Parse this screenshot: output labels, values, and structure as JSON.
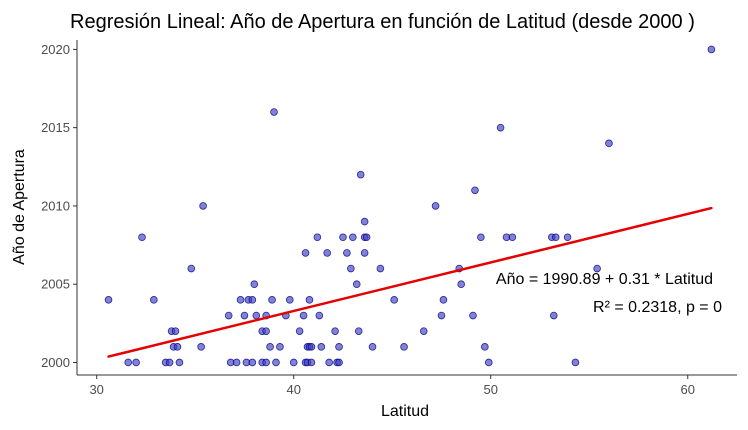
{
  "chart_data": {
    "type": "scatter",
    "title": "Regresión Lineal: Año de Apertura en función de Latitud (desde 2000 )",
    "xlabel": "Latitud",
    "ylabel": "Año de Apertura",
    "xlim": [
      29.0,
      62.5
    ],
    "ylim": [
      1999.2,
      2020.6
    ],
    "xticks": [
      30,
      40,
      50,
      60
    ],
    "yticks": [
      2000,
      2005,
      2010,
      2015,
      2020
    ],
    "grid": false,
    "colors": {
      "points": "#3f3fbf",
      "point_stroke": "#00008b",
      "fit_line": "#e60000"
    },
    "fit_line": {
      "intercept": 1990.89,
      "slope": 0.31,
      "x_range": [
        30.6,
        61.2
      ]
    },
    "annotations": [
      "Año = 1990.89 + 0.31 * Latitud",
      "R² = 0.2318, p = 0"
    ],
    "points": [
      [
        30.6,
        2004
      ],
      [
        31.6,
        2000
      ],
      [
        32.0,
        2000
      ],
      [
        32.3,
        2008
      ],
      [
        32.9,
        2004
      ],
      [
        33.5,
        2000
      ],
      [
        33.7,
        2000
      ],
      [
        33.8,
        2002
      ],
      [
        34.0,
        2002
      ],
      [
        33.9,
        2001
      ],
      [
        34.1,
        2001
      ],
      [
        34.2,
        2000
      ],
      [
        34.8,
        2006
      ],
      [
        35.3,
        2001
      ],
      [
        35.4,
        2010
      ],
      [
        36.7,
        2003
      ],
      [
        36.8,
        2000
      ],
      [
        37.1,
        2000
      ],
      [
        37.3,
        2004
      ],
      [
        37.5,
        2003
      ],
      [
        37.6,
        2000
      ],
      [
        37.7,
        2004
      ],
      [
        37.9,
        2000
      ],
      [
        37.9,
        2004
      ],
      [
        38.0,
        2005
      ],
      [
        38.1,
        2003
      ],
      [
        38.4,
        2000
      ],
      [
        38.6,
        2000
      ],
      [
        38.6,
        2003
      ],
      [
        38.4,
        2002
      ],
      [
        38.6,
        2002
      ],
      [
        38.8,
        2001
      ],
      [
        38.9,
        2004
      ],
      [
        39.1,
        2000
      ],
      [
        39.0,
        2016
      ],
      [
        39.3,
        2001
      ],
      [
        39.6,
        2003
      ],
      [
        39.8,
        2004
      ],
      [
        40.0,
        2000
      ],
      [
        40.3,
        2002
      ],
      [
        40.5,
        2003
      ],
      [
        40.6,
        2007
      ],
      [
        40.7,
        2001
      ],
      [
        40.6,
        2000
      ],
      [
        40.8,
        2001
      ],
      [
        40.7,
        2000
      ],
      [
        40.8,
        2004
      ],
      [
        40.9,
        2001
      ],
      [
        40.9,
        2000
      ],
      [
        41.2,
        2008
      ],
      [
        41.3,
        2003
      ],
      [
        41.4,
        2001
      ],
      [
        41.7,
        2007
      ],
      [
        41.8,
        2000
      ],
      [
        42.1,
        2002
      ],
      [
        42.2,
        2000
      ],
      [
        42.3,
        2001
      ],
      [
        42.3,
        2000
      ],
      [
        42.5,
        2008
      ],
      [
        42.7,
        2007
      ],
      [
        42.9,
        2006
      ],
      [
        43.0,
        2008
      ],
      [
        43.2,
        2005
      ],
      [
        43.3,
        2002
      ],
      [
        43.4,
        2012
      ],
      [
        43.6,
        2008
      ],
      [
        43.6,
        2009
      ],
      [
        43.6,
        2007
      ],
      [
        43.7,
        2008
      ],
      [
        44.0,
        2001
      ],
      [
        44.4,
        2006
      ],
      [
        45.1,
        2004
      ],
      [
        45.6,
        2001
      ],
      [
        46.6,
        2002
      ],
      [
        47.2,
        2010
      ],
      [
        47.5,
        2003
      ],
      [
        47.6,
        2004
      ],
      [
        48.4,
        2006
      ],
      [
        48.5,
        2005
      ],
      [
        49.1,
        2003
      ],
      [
        49.2,
        2011
      ],
      [
        49.5,
        2008
      ],
      [
        49.7,
        2001
      ],
      [
        49.9,
        2000
      ],
      [
        50.5,
        2015
      ],
      [
        50.8,
        2008
      ],
      [
        51.1,
        2008
      ],
      [
        53.1,
        2008
      ],
      [
        53.3,
        2008
      ],
      [
        53.2,
        2003
      ],
      [
        53.9,
        2008
      ],
      [
        54.3,
        2000
      ],
      [
        55.4,
        2006
      ],
      [
        56.0,
        2014
      ],
      [
        61.2,
        2020
      ]
    ]
  }
}
